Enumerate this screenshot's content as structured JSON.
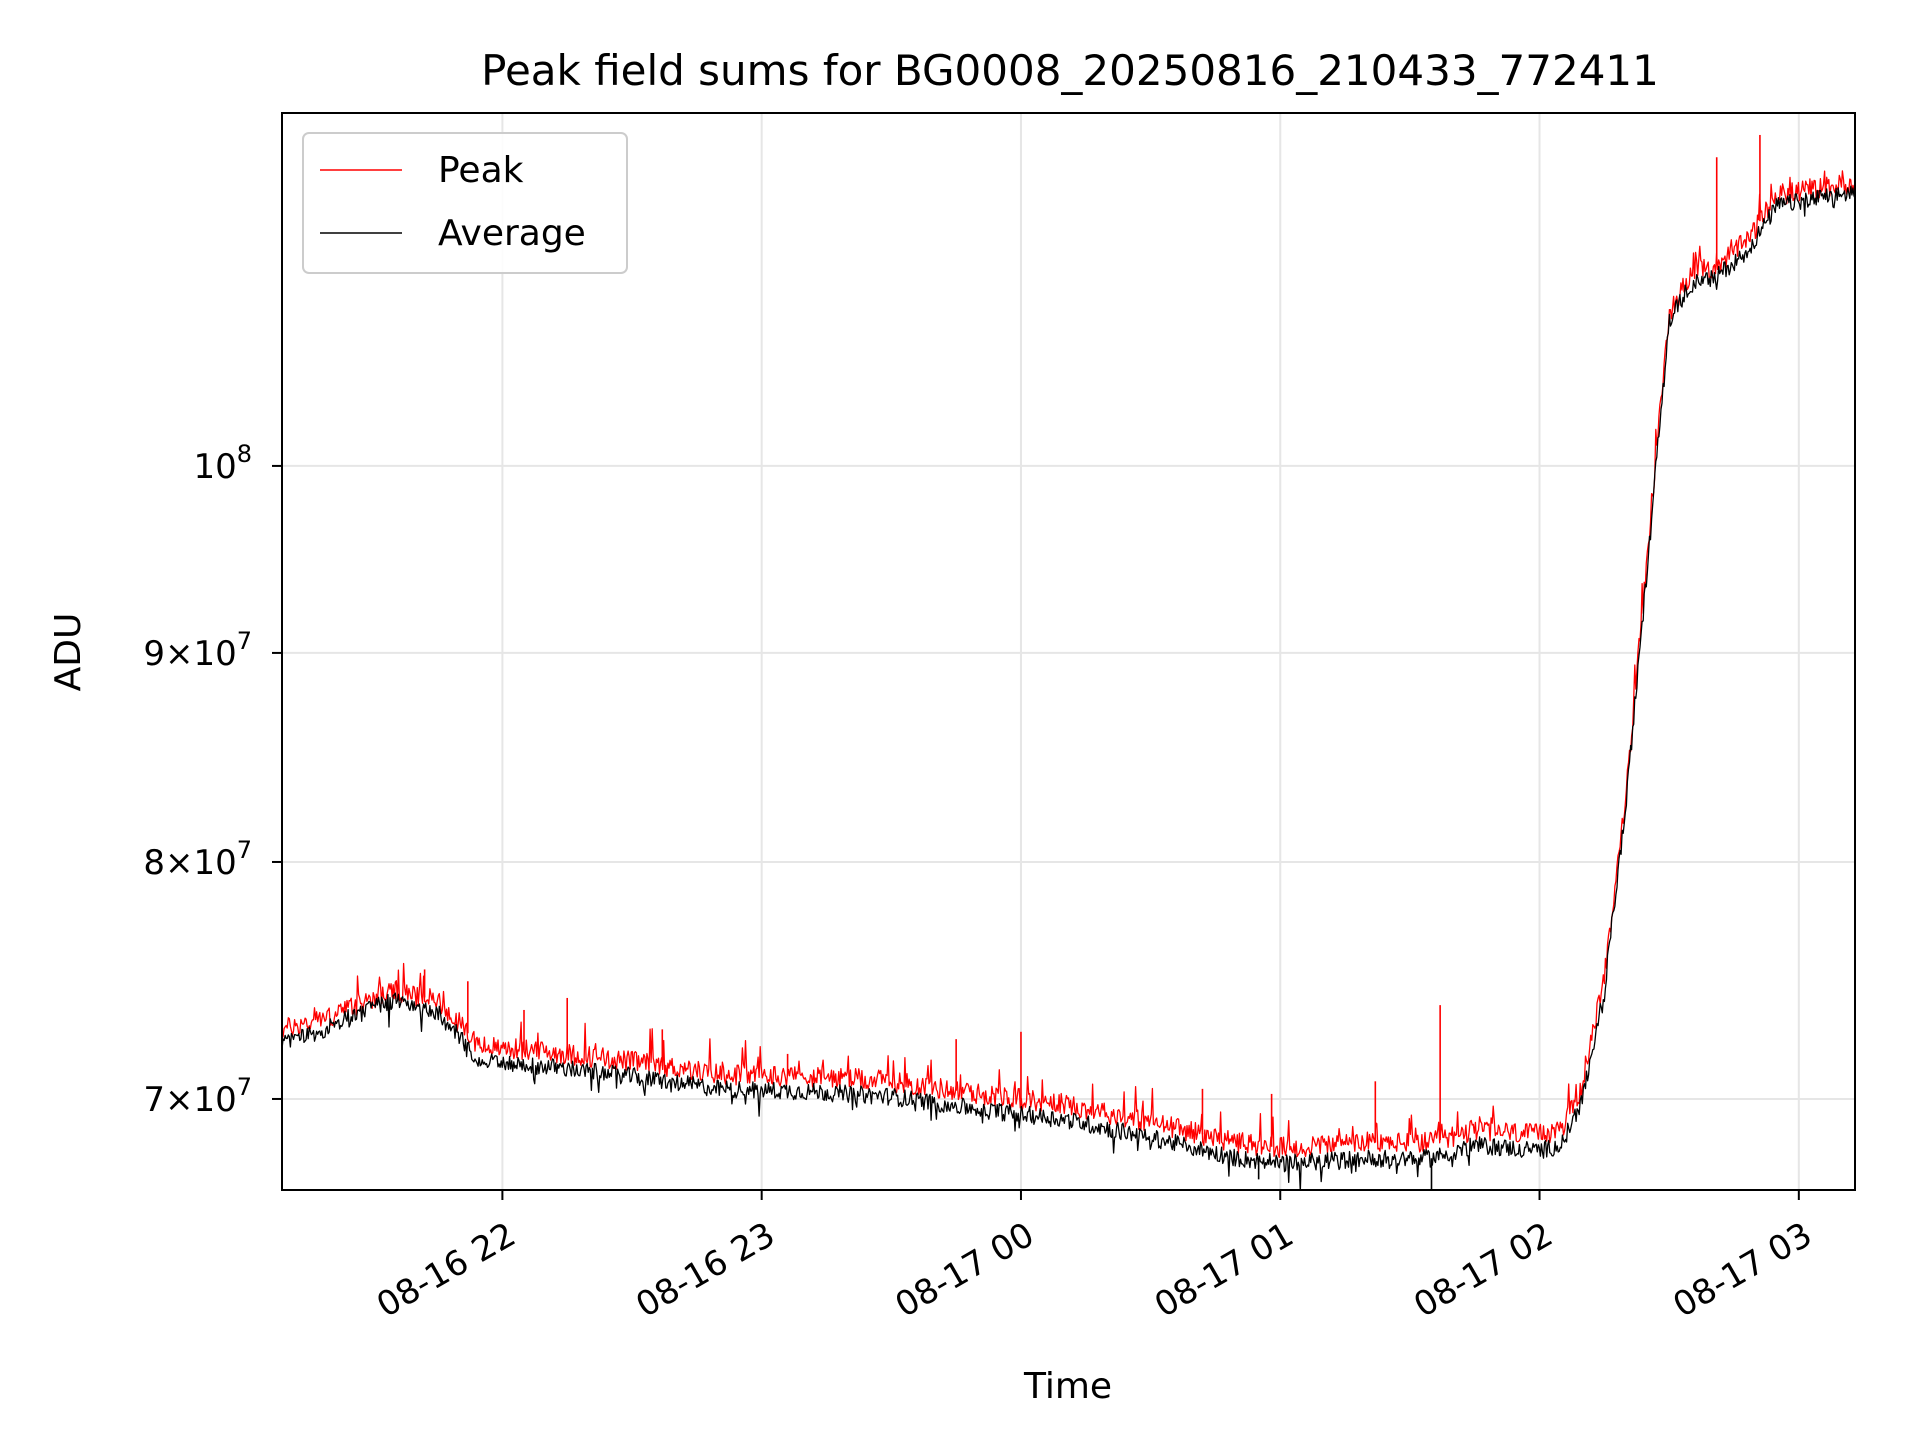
{
  "chart_data": {
    "type": "line",
    "title": "Peak field sums for BG0008_20250816_210433_772411",
    "xlabel": "Time",
    "ylabel": "ADU",
    "x_range": [
      "2025-08-16 21:09",
      "2025-08-17 03:13"
    ],
    "x_ticks": [
      {
        "t": "2025-08-16 22:00",
        "label": "08-16 22"
      },
      {
        "t": "2025-08-16 23:00",
        "label": "08-16 23"
      },
      {
        "t": "2025-08-17 00:00",
        "label": "08-17 00"
      },
      {
        "t": "2025-08-17 01:00",
        "label": "08-17 01"
      },
      {
        "t": "2025-08-17 02:00",
        "label": "08-17 02"
      },
      {
        "t": "2025-08-17 03:00",
        "label": "08-17 03"
      }
    ],
    "y_scale": "log",
    "ylim": [
      66500000,
      122000000
    ],
    "y_ticks": [
      {
        "value": 70000000,
        "mant": "7",
        "exp": "7"
      },
      {
        "value": 80000000,
        "mant": "8",
        "exp": "7"
      },
      {
        "value": 90000000,
        "mant": "9",
        "exp": "7"
      },
      {
        "value": 100000000,
        "mant": "",
        "exp": "8"
      }
    ],
    "grid": true,
    "legend_position": "upper-left",
    "series": [
      {
        "name": "Peak",
        "color": "#ff0000",
        "points": [
          [
            "2025-08-16 21:09",
            72800000
          ],
          [
            "2025-08-16 21:20",
            73300000
          ],
          [
            "2025-08-16 21:30",
            74100000
          ],
          [
            "2025-08-16 21:35",
            74400000
          ],
          [
            "2025-08-16 21:45",
            74000000
          ],
          [
            "2025-08-16 21:50",
            73000000
          ],
          [
            "2025-08-16 21:55",
            72100000
          ],
          [
            "2025-08-16 22:10",
            71900000
          ],
          [
            "2025-08-16 22:30",
            71500000
          ],
          [
            "2025-08-16 22:50",
            71000000
          ],
          [
            "2025-08-16 23:10",
            70900000
          ],
          [
            "2025-08-16 23:30",
            70700000
          ],
          [
            "2025-08-16 23:50",
            70200000
          ],
          [
            "2025-08-17 00:10",
            69800000
          ],
          [
            "2025-08-17 00:30",
            69100000
          ],
          [
            "2025-08-17 00:50",
            68300000
          ],
          [
            "2025-08-17 01:00",
            68100000
          ],
          [
            "2025-08-17 01:20",
            68300000
          ],
          [
            "2025-08-17 01:35",
            68300000
          ],
          [
            "2025-08-17 01:45",
            68800000
          ],
          [
            "2025-08-17 02:00",
            68600000
          ],
          [
            "2025-08-17 02:05",
            68800000
          ],
          [
            "2025-08-17 02:10",
            70500000
          ],
          [
            "2025-08-17 02:15",
            75000000
          ],
          [
            "2025-08-17 02:20",
            83000000
          ],
          [
            "2025-08-17 02:25",
            95000000
          ],
          [
            "2025-08-17 02:30",
            109000000
          ],
          [
            "2025-08-17 02:35",
            111500000
          ],
          [
            "2025-08-17 02:40",
            111800000
          ],
          [
            "2025-08-17 02:48",
            113500000
          ],
          [
            "2025-08-17 02:55",
            116500000
          ],
          [
            "2025-08-17 03:13",
            117300000
          ]
        ],
        "spikes": [
          [
            "2025-08-16 21:42",
            75300000
          ],
          [
            "2025-08-16 21:52",
            74800000
          ],
          [
            "2025-08-16 22:05",
            73600000
          ],
          [
            "2025-08-16 22:15",
            74100000
          ],
          [
            "2025-08-16 22:37",
            72800000
          ],
          [
            "2025-08-16 23:06",
            71800000
          ],
          [
            "2025-08-16 23:45",
            72400000
          ],
          [
            "2025-08-17 00:00",
            72700000
          ],
          [
            "2025-08-17 00:42",
            70400000
          ],
          [
            "2025-08-17 00:58",
            70200000
          ],
          [
            "2025-08-17 01:22",
            70700000
          ],
          [
            "2025-08-17 01:37",
            73800000
          ],
          [
            "2025-08-17 02:41",
            119000000
          ],
          [
            "2025-08-17 02:51",
            120500000
          ]
        ]
      },
      {
        "name": "Average",
        "color": "#000000",
        "points": [
          [
            "2025-08-16 21:09",
            72200000
          ],
          [
            "2025-08-16 21:20",
            72900000
          ],
          [
            "2025-08-16 21:30",
            73700000
          ],
          [
            "2025-08-16 21:35",
            74000000
          ],
          [
            "2025-08-16 21:45",
            73500000
          ],
          [
            "2025-08-16 21:50",
            72500000
          ],
          [
            "2025-08-16 21:55",
            71500000
          ],
          [
            "2025-08-16 22:10",
            71300000
          ],
          [
            "2025-08-16 22:30",
            70900000
          ],
          [
            "2025-08-16 22:50",
            70400000
          ],
          [
            "2025-08-16 23:10",
            70300000
          ],
          [
            "2025-08-16 23:30",
            70100000
          ],
          [
            "2025-08-16 23:50",
            69600000
          ],
          [
            "2025-08-17 00:10",
            69200000
          ],
          [
            "2025-08-17 00:30",
            68500000
          ],
          [
            "2025-08-17 00:50",
            67700000
          ],
          [
            "2025-08-17 01:00",
            67500000
          ],
          [
            "2025-08-17 01:20",
            67700000
          ],
          [
            "2025-08-17 01:35",
            67700000
          ],
          [
            "2025-08-17 01:45",
            68200000
          ],
          [
            "2025-08-17 02:00",
            68000000
          ],
          [
            "2025-08-17 02:05",
            68200000
          ],
          [
            "2025-08-17 02:10",
            70000000
          ],
          [
            "2025-08-17 02:15",
            74400000
          ],
          [
            "2025-08-17 02:20",
            82500000
          ],
          [
            "2025-08-17 02:25",
            94500000
          ],
          [
            "2025-08-17 02:30",
            108500000
          ],
          [
            "2025-08-17 02:35",
            110800000
          ],
          [
            "2025-08-17 02:40",
            111100000
          ],
          [
            "2025-08-17 02:48",
            112800000
          ],
          [
            "2025-08-17 02:55",
            115800000
          ],
          [
            "2025-08-17 03:13",
            116700000
          ]
        ],
        "spikes": [
          [
            "2025-08-17 01:35",
            66400000
          ],
          [
            "2025-08-17 00:55",
            66900000
          ]
        ]
      }
    ]
  }
}
